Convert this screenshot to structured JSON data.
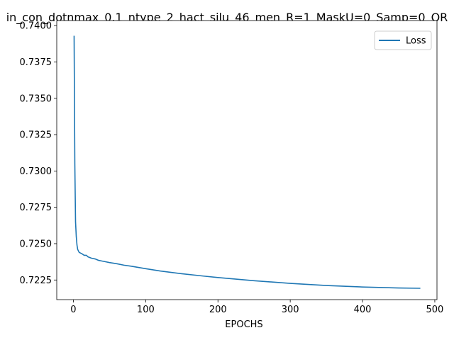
{
  "chart_data": {
    "type": "line",
    "title": "in_con_dotnmax_0.1_ntype_2_hact_silu_46_men_R=1_MaskU=0_Samp=0_OR",
    "xlabel": "EPOCHS",
    "ylabel": "",
    "xlim": [
      -23,
      503
    ],
    "ylim": [
      0.72115,
      0.74035
    ],
    "x_ticks": [
      0,
      100,
      200,
      300,
      400,
      500
    ],
    "x_tick_labels": [
      "0",
      "100",
      "200",
      "300",
      "400",
      "500"
    ],
    "y_ticks": [
      0.7225,
      0.725,
      0.7275,
      0.73,
      0.7325,
      0.735,
      0.7375,
      0.74
    ],
    "y_tick_labels": [
      "0.7225",
      "0.7250",
      "0.7275",
      "0.7300",
      "0.7325",
      "0.7350",
      "0.7375",
      "0.7400"
    ],
    "grid": false,
    "legend_position": "top-right",
    "series": [
      {
        "name": "Loss",
        "color": "#1f77b4",
        "x": [
          1,
          2,
          3,
          4,
          5,
          6,
          8,
          10,
          12,
          15,
          18,
          20,
          25,
          30,
          35,
          40,
          45,
          50,
          60,
          70,
          80,
          100,
          120,
          150,
          180,
          200,
          250,
          300,
          350,
          400,
          450,
          480
        ],
        "y": [
          0.7393,
          0.7305,
          0.7265,
          0.7255,
          0.7249,
          0.7246,
          0.7244,
          0.72435,
          0.7243,
          0.7242,
          0.7242,
          0.7241,
          0.724,
          0.72395,
          0.72385,
          0.7238,
          0.72375,
          0.7237,
          0.72362,
          0.72352,
          0.72345,
          0.72328,
          0.72312,
          0.72293,
          0.72277,
          0.72267,
          0.72245,
          0.72227,
          0.72212,
          0.72202,
          0.72195,
          0.72193
        ]
      }
    ]
  }
}
